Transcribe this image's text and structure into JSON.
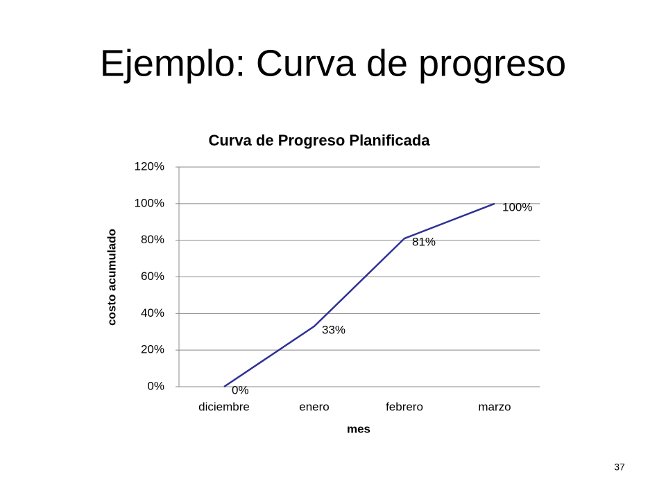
{
  "slide": {
    "title": "Ejemplo: Curva de progreso",
    "number": "37"
  },
  "chart_data": {
    "type": "line",
    "title": "Curva de Progreso Planificada",
    "x_label": "mes",
    "y_label": "costo acumulado",
    "categories": [
      "diciembre",
      "enero",
      "febrero",
      "marzo"
    ],
    "values": [
      0,
      33,
      81,
      100
    ],
    "value_labels": [
      "0%",
      "33%",
      "81%",
      "100%"
    ],
    "color": "#2e3192",
    "ylim": [
      0,
      120
    ],
    "yticks": [
      {
        "value": 0,
        "label": "0%"
      },
      {
        "value": 20,
        "label": "20%"
      },
      {
        "value": 40,
        "label": "40%"
      },
      {
        "value": 60,
        "label": "60%"
      },
      {
        "value": 80,
        "label": "80%"
      },
      {
        "value": 100,
        "label": "100%"
      },
      {
        "value": 120,
        "label": "120%"
      }
    ],
    "grid": true
  }
}
